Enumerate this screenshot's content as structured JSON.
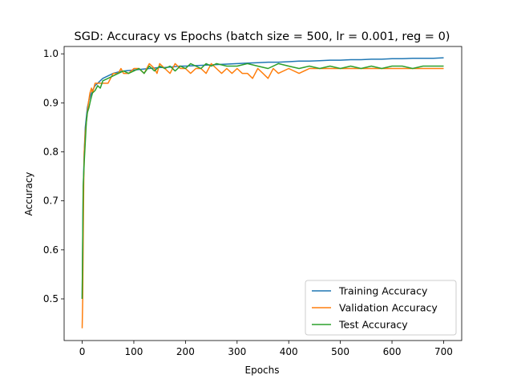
{
  "chart_data": {
    "type": "line",
    "title": "SGD: Accuracy vs Epochs (batch size = 500, lr = 0.001, reg = 0)",
    "xlabel": "Epochs",
    "ylabel": "Accuracy",
    "xlim": [
      -35,
      735
    ],
    "ylim": [
      0.415,
      1.015
    ],
    "xticks": [
      0,
      100,
      200,
      300,
      400,
      500,
      600,
      700
    ],
    "yticks": [
      0.5,
      0.6,
      0.7,
      0.8,
      0.9,
      1.0
    ],
    "ytick_labels": [
      "0.5",
      "0.6",
      "0.7",
      "0.8",
      "0.9",
      "1.0"
    ],
    "legend_position": "lower-right",
    "series": [
      {
        "name": "Training Accuracy",
        "color": "#1f77b4",
        "x": [
          0,
          2,
          4,
          6,
          8,
          10,
          13,
          16,
          20,
          25,
          30,
          35,
          40,
          50,
          60,
          70,
          80,
          90,
          100,
          110,
          120,
          130,
          140,
          150,
          160,
          170,
          180,
          190,
          200,
          220,
          240,
          260,
          280,
          300,
          320,
          340,
          360,
          380,
          400,
          420,
          440,
          460,
          480,
          500,
          520,
          540,
          560,
          580,
          600,
          620,
          640,
          660,
          680,
          700
        ],
        "y": [
          0.5,
          0.72,
          0.8,
          0.85,
          0.87,
          0.89,
          0.905,
          0.915,
          0.925,
          0.935,
          0.94,
          0.945,
          0.95,
          0.955,
          0.96,
          0.963,
          0.965,
          0.966,
          0.967,
          0.968,
          0.969,
          0.97,
          0.971,
          0.972,
          0.972,
          0.973,
          0.974,
          0.975,
          0.975,
          0.976,
          0.977,
          0.978,
          0.979,
          0.98,
          0.981,
          0.982,
          0.983,
          0.983,
          0.984,
          0.985,
          0.985,
          0.986,
          0.987,
          0.987,
          0.988,
          0.988,
          0.989,
          0.989,
          0.99,
          0.99,
          0.991,
          0.991,
          0.991,
          0.992
        ]
      },
      {
        "name": "Validation Accuracy",
        "color": "#ff7f0e",
        "x": [
          0,
          1,
          2,
          3,
          4,
          5,
          6,
          8,
          10,
          12,
          15,
          18,
          20,
          25,
          30,
          40,
          50,
          60,
          70,
          75,
          80,
          90,
          100,
          110,
          120,
          130,
          140,
          145,
          150,
          160,
          170,
          180,
          190,
          200,
          210,
          220,
          230,
          240,
          250,
          260,
          270,
          280,
          290,
          300,
          310,
          320,
          330,
          340,
          350,
          360,
          370,
          380,
          400,
          420,
          440,
          460,
          480,
          500,
          520,
          540,
          560,
          580,
          600,
          620,
          640,
          660,
          680,
          700
        ],
        "y": [
          0.44,
          0.5,
          0.62,
          0.74,
          0.8,
          0.82,
          0.84,
          0.86,
          0.88,
          0.9,
          0.92,
          0.93,
          0.92,
          0.94,
          0.94,
          0.94,
          0.94,
          0.96,
          0.96,
          0.97,
          0.96,
          0.96,
          0.97,
          0.97,
          0.96,
          0.98,
          0.97,
          0.96,
          0.98,
          0.97,
          0.96,
          0.98,
          0.97,
          0.97,
          0.96,
          0.97,
          0.97,
          0.96,
          0.98,
          0.97,
          0.96,
          0.97,
          0.96,
          0.97,
          0.96,
          0.96,
          0.95,
          0.97,
          0.96,
          0.95,
          0.97,
          0.96,
          0.97,
          0.96,
          0.97,
          0.97,
          0.97,
          0.97,
          0.97,
          0.97,
          0.97,
          0.97,
          0.97,
          0.97,
          0.97,
          0.97,
          0.97,
          0.97
        ]
      },
      {
        "name": "Test Accuracy",
        "color": "#2ca02c",
        "x": [
          0,
          2,
          4,
          6,
          8,
          10,
          13,
          16,
          20,
          25,
          30,
          35,
          40,
          50,
          60,
          70,
          80,
          90,
          100,
          110,
          120,
          130,
          140,
          150,
          160,
          170,
          180,
          190,
          200,
          210,
          220,
          230,
          240,
          250,
          260,
          280,
          300,
          320,
          340,
          360,
          380,
          400,
          420,
          440,
          460,
          480,
          500,
          520,
          540,
          560,
          580,
          600,
          620,
          640,
          660,
          680,
          700
        ],
        "y": [
          0.5,
          0.73,
          0.78,
          0.82,
          0.86,
          0.88,
          0.89,
          0.905,
          0.92,
          0.925,
          0.935,
          0.93,
          0.945,
          0.95,
          0.955,
          0.96,
          0.965,
          0.96,
          0.965,
          0.97,
          0.96,
          0.975,
          0.965,
          0.975,
          0.97,
          0.975,
          0.965,
          0.975,
          0.97,
          0.98,
          0.975,
          0.97,
          0.98,
          0.975,
          0.98,
          0.975,
          0.975,
          0.98,
          0.975,
          0.97,
          0.98,
          0.975,
          0.97,
          0.975,
          0.97,
          0.975,
          0.97,
          0.975,
          0.97,
          0.975,
          0.97,
          0.975,
          0.975,
          0.97,
          0.975,
          0.975,
          0.975
        ]
      }
    ]
  }
}
